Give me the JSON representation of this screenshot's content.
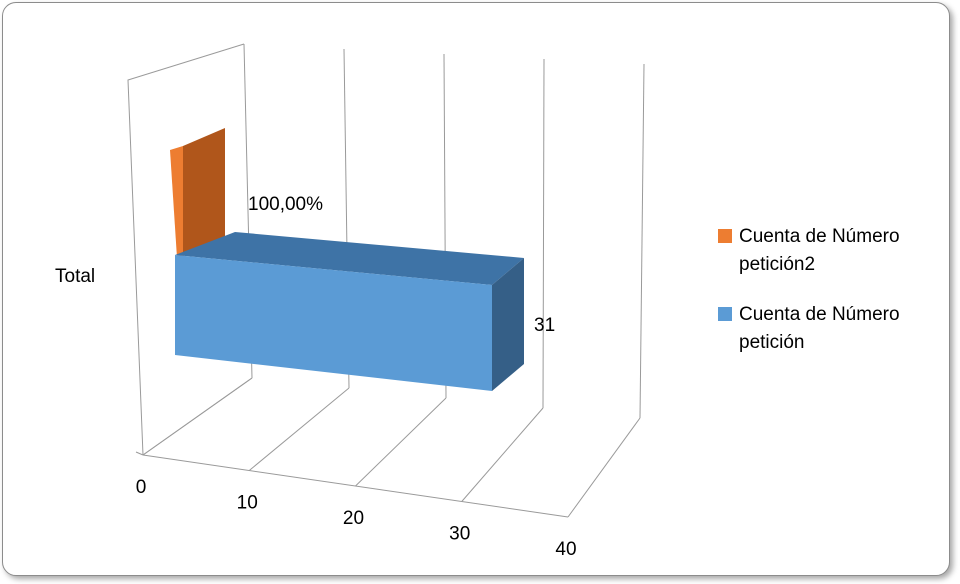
{
  "chart_data": {
    "type": "bar",
    "orientation": "horizontal",
    "three_d": true,
    "categories": [
      "Total"
    ],
    "series": [
      {
        "name": "Cuenta de Número petición2",
        "values": [
          1.0
        ],
        "data_label": "100,00%",
        "color": "#ED7D31"
      },
      {
        "name": "Cuenta de Número petición",
        "values": [
          31
        ],
        "data_label": "31",
        "color": "#5B9BD5"
      }
    ],
    "x_ticks": [
      "0",
      "10",
      "20",
      "30",
      "40"
    ],
    "xlim": [
      0,
      40
    ],
    "grid": true,
    "legend_position": "right",
    "legend": [
      {
        "lines": [
          "Cuenta de Número",
          "petición2"
        ],
        "color": "#ED7D31"
      },
      {
        "lines": [
          "Cuenta de Número",
          "petición"
        ],
        "color": "#5B9BD5"
      }
    ]
  }
}
